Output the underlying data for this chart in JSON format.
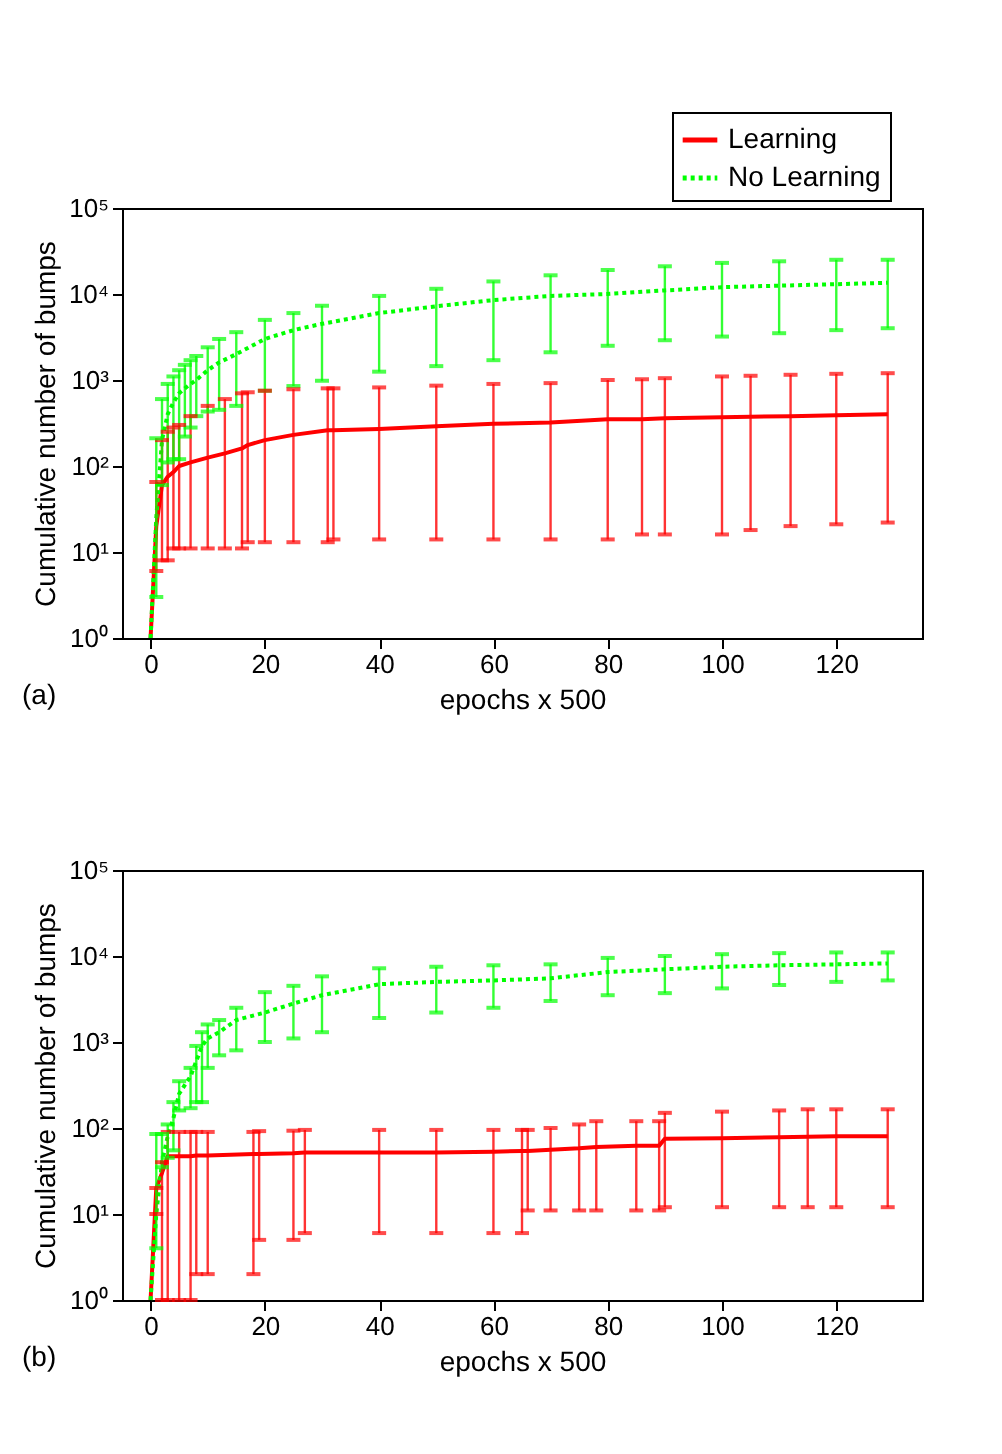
{
  "chart_data": [
    {
      "type": "line",
      "ylabel": "Cumulative number of bumps",
      "xlabel": "epochs x 500",
      "annotations": [
        "(a)"
      ],
      "log": "y",
      "legend": "top right",
      "grid": false,
      "marker": "none",
      "xlim": [
        -5,
        135
      ],
      "xticks": [
        0,
        20,
        40,
        60,
        80,
        100,
        120
      ],
      "ylim": [
        1,
        100000
      ],
      "yticks": [
        {
          "value": 1,
          "label": "10⁰"
        },
        {
          "value": 10,
          "label": "10¹"
        },
        {
          "value": 100,
          "label": "10²"
        },
        {
          "value": 1000,
          "label": "10³"
        },
        {
          "value": 10000,
          "label": "10⁴"
        },
        {
          "value": 100000,
          "label": "10⁵"
        }
      ],
      "series": [
        {
          "name": "Learning",
          "color": "#ff0000",
          "line_style": "solid",
          "x": [
            0,
            1,
            2,
            3,
            4,
            5,
            7,
            10,
            13,
            16,
            17,
            20,
            25,
            31,
            32,
            40,
            50,
            60,
            70,
            80,
            86,
            90,
            100,
            105,
            112,
            120,
            129
          ],
          "values": [
            1,
            20,
            60,
            75,
            85,
            100,
            110,
            125,
            140,
            160,
            175,
            200,
            230,
            260,
            260,
            270,
            290,
            310,
            320,
            350,
            350,
            360,
            370,
            375,
            380,
            390,
            400
          ],
          "errors": [
            null,
            [
              6,
              65
            ],
            [
              8,
              200
            ],
            [
              8,
              250
            ],
            [
              11,
              280
            ],
            [
              11,
              300
            ],
            [
              11,
              380
            ],
            [
              11,
              500
            ],
            [
              11,
              600
            ],
            [
              11,
              700
            ],
            [
              13,
              720
            ],
            [
              13,
              750
            ],
            [
              13,
              780
            ],
            [
              13,
              800
            ],
            [
              14,
              800
            ],
            [
              14,
              820
            ],
            [
              14,
              860
            ],
            [
              14,
              900
            ],
            [
              14,
              920
            ],
            [
              14,
              1000
            ],
            [
              16,
              1020
            ],
            [
              16,
              1050
            ],
            [
              16,
              1100
            ],
            [
              18,
              1120
            ],
            [
              20,
              1150
            ],
            [
              21,
              1180
            ],
            [
              22,
              1200
            ]
          ]
        },
        {
          "name": "No Learning",
          "color": "#00ff00",
          "line_style": "dotted",
          "x": [
            0,
            1,
            2,
            3,
            4,
            5,
            6,
            7,
            8,
            10,
            12,
            15,
            20,
            25,
            30,
            40,
            50,
            60,
            70,
            80,
            90,
            100,
            110,
            120,
            129
          ],
          "values": [
            1,
            25,
            200,
            400,
            550,
            700,
            800,
            900,
            1000,
            1300,
            1600,
            2000,
            3000,
            3800,
            4500,
            6000,
            7200,
            8500,
            9500,
            10000,
            11000,
            12000,
            12500,
            13000,
            13500
          ],
          "errors": [
            null,
            [
              3,
              210
            ],
            [
              60,
              600
            ],
            [
              110,
              900
            ],
            [
              120,
              1100
            ],
            [
              120,
              1300
            ],
            [
              220,
              1500
            ],
            [
              280,
              1700
            ],
            [
              380,
              1900
            ],
            [
              430,
              2400
            ],
            [
              450,
              3000
            ],
            [
              500,
              3600
            ],
            [
              750,
              5000
            ],
            [
              850,
              6000
            ],
            [
              980,
              7300
            ],
            [
              1250,
              9500
            ],
            [
              1450,
              11500
            ],
            [
              1700,
              14000
            ],
            [
              2100,
              16500
            ],
            [
              2500,
              19000
            ],
            [
              2900,
              21000
            ],
            [
              3200,
              23000
            ],
            [
              3500,
              24000
            ],
            [
              3800,
              25000
            ],
            [
              4000,
              25000
            ]
          ]
        }
      ]
    },
    {
      "type": "line",
      "ylabel": "Cumulative number of bumps",
      "xlabel": "epochs x 500",
      "annotations": [
        "(b)"
      ],
      "log": "y",
      "legend": "top right",
      "grid": false,
      "marker": "none",
      "xlim": [
        -5,
        135
      ],
      "xticks": [
        0,
        20,
        40,
        60,
        80,
        100,
        120
      ],
      "ylim": [
        1,
        100000
      ],
      "yticks": [
        {
          "value": 1,
          "label": "10⁰"
        },
        {
          "value": 10,
          "label": "10¹"
        },
        {
          "value": 100,
          "label": "10²"
        },
        {
          "value": 1000,
          "label": "10³"
        },
        {
          "value": 10000,
          "label": "10⁴"
        },
        {
          "value": 100000,
          "label": "10⁵"
        }
      ],
      "series": [
        {
          "name": "Learning",
          "color": "#ff0000",
          "line_style": "solid",
          "x": [
            0,
            1,
            2,
            3,
            5,
            7,
            8,
            10,
            18,
            19,
            25,
            27,
            40,
            50,
            60,
            65,
            66,
            70,
            75,
            78,
            85,
            89,
            90,
            100,
            110,
            115,
            120,
            129
          ],
          "values": [
            1,
            20,
            30,
            47,
            47,
            47,
            48,
            48,
            50,
            50,
            51,
            52,
            52,
            52,
            53,
            54,
            54,
            56,
            58,
            60,
            62,
            62,
            75,
            76,
            78,
            79,
            80,
            80
          ],
          "errors": [
            null,
            [
              10,
              20
            ],
            [
              1,
              40
            ],
            [
              1,
              90
            ],
            [
              1,
              90
            ],
            [
              1,
              90
            ],
            [
              2,
              90
            ],
            [
              2,
              90
            ],
            [
              2,
              90
            ],
            [
              5,
              92
            ],
            [
              5,
              93
            ],
            [
              6,
              95
            ],
            [
              6,
              95
            ],
            [
              6,
              95
            ],
            [
              6,
              95
            ],
            [
              6,
              95
            ],
            [
              11,
              95
            ],
            [
              11,
              100
            ],
            [
              11,
              110
            ],
            [
              11,
              120
            ],
            [
              11,
              120
            ],
            [
              11,
              120
            ],
            [
              12,
              150
            ],
            [
              12,
              155
            ],
            [
              12,
              160
            ],
            [
              12,
              165
            ],
            [
              12,
              165
            ],
            [
              12,
              165
            ]
          ]
        },
        {
          "name": "No Learning",
          "color": "#00ff00",
          "line_style": "dotted",
          "x": [
            0,
            1,
            2,
            3,
            4,
            5,
            7,
            8,
            9,
            10,
            12,
            15,
            20,
            25,
            30,
            40,
            50,
            60,
            70,
            80,
            90,
            100,
            110,
            120,
            129
          ],
          "values": [
            1,
            10,
            40,
            80,
            130,
            250,
            400,
            600,
            900,
            1100,
            1300,
            1800,
            2200,
            2800,
            3500,
            4700,
            5000,
            5200,
            5500,
            6500,
            7000,
            7500,
            7800,
            8000,
            8200
          ],
          "errors": [
            null,
            [
              4,
              85
            ],
            [
              35,
              85
            ],
            [
              45,
              110
            ],
            [
              55,
              200
            ],
            [
              160,
              350
            ],
            [
              170,
              500
            ],
            [
              200,
              900
            ],
            [
              200,
              1300
            ],
            [
              500,
              1600
            ],
            [
              700,
              1800
            ],
            [
              800,
              2500
            ],
            [
              1000,
              3800
            ],
            [
              1100,
              4500
            ],
            [
              1300,
              5800
            ],
            [
              1900,
              7200
            ],
            [
              2200,
              7500
            ],
            [
              2500,
              7800
            ],
            [
              3000,
              8000
            ],
            [
              3500,
              9500
            ],
            [
              3700,
              10000
            ],
            [
              4200,
              10500
            ],
            [
              4600,
              10800
            ],
            [
              5000,
              11000
            ],
            [
              5200,
              11000
            ]
          ]
        }
      ]
    }
  ]
}
